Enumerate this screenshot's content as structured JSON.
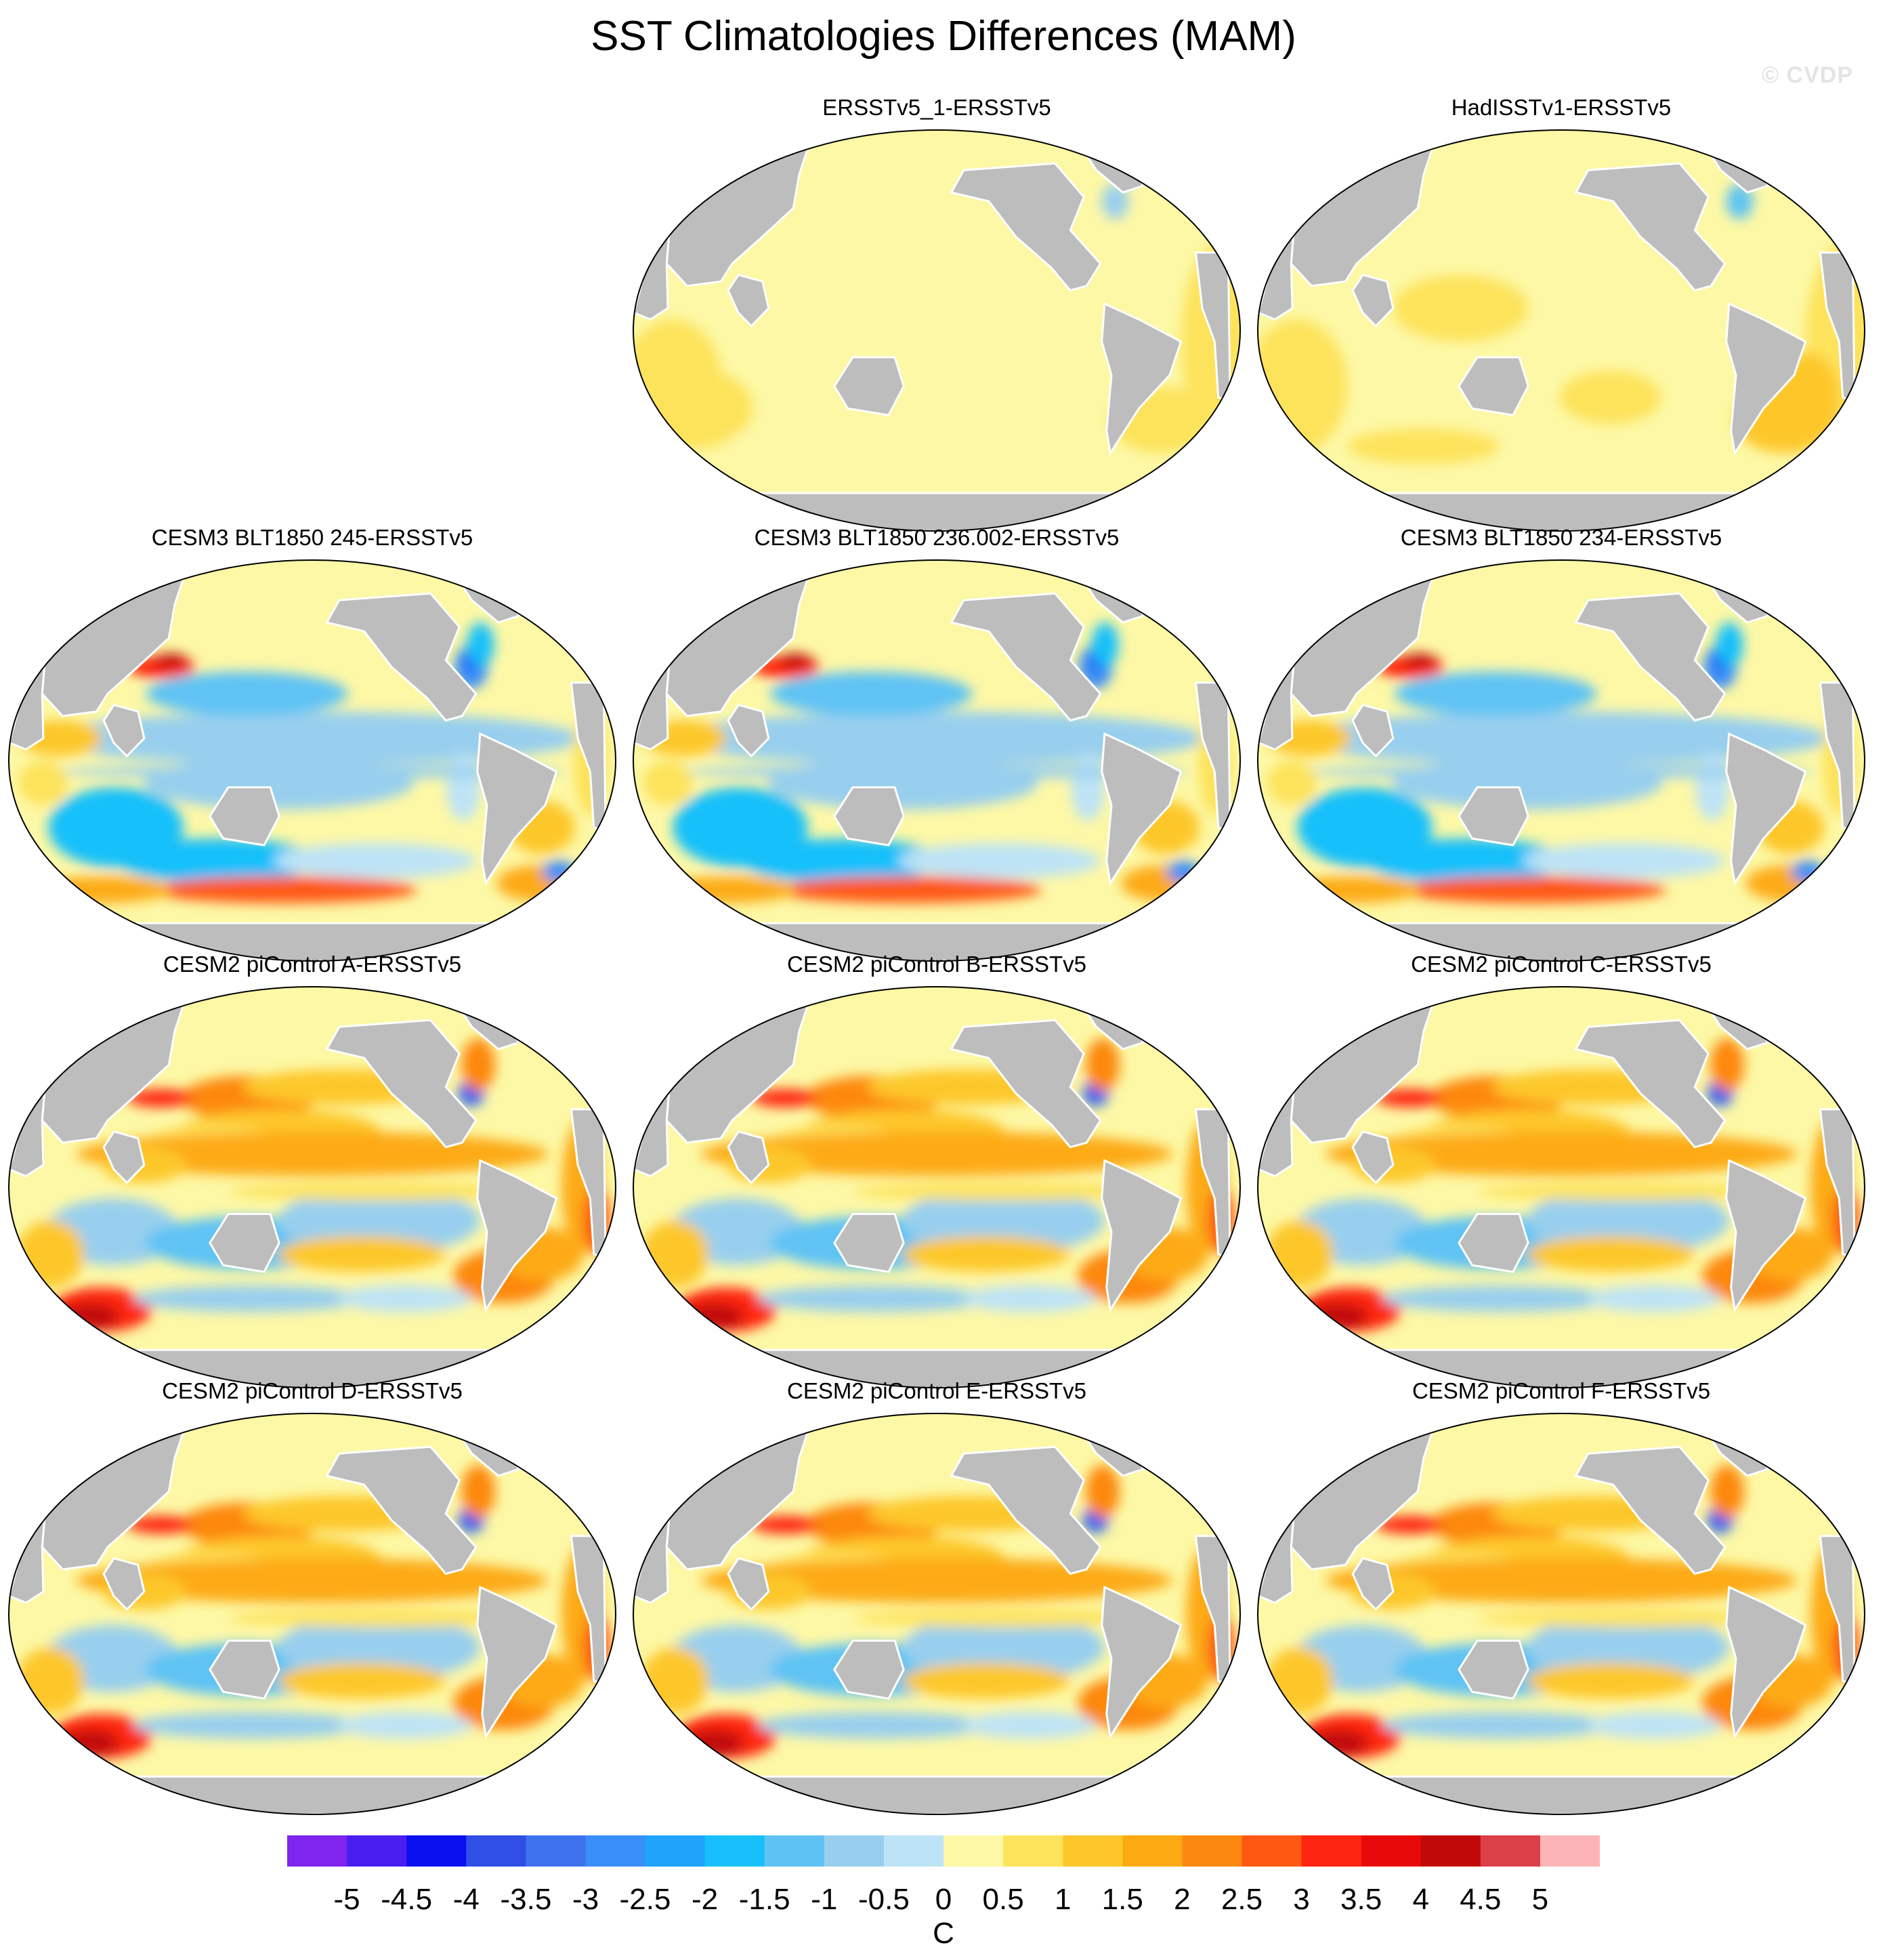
{
  "title": "SST Climatologies Differences (MAM)",
  "watermark": "© CVDP",
  "panels": [
    {
      "title": "ERSSTv5_1-ERSSTv5",
      "style": "obs"
    },
    {
      "title": "HadISSTv1-ERSSTv5",
      "style": "obs2"
    },
    {
      "title": "CESM3 BLT1850 245-ERSSTv5",
      "style": "cesm3"
    },
    {
      "title": "CESM3 BLT1850 236.002-ERSSTv5",
      "style": "cesm3"
    },
    {
      "title": "CESM3 BLT1850 234-ERSSTv5",
      "style": "cesm3"
    },
    {
      "title": "CESM2 piControl A-ERSSTv5",
      "style": "cesm2"
    },
    {
      "title": "CESM2 piControl B-ERSSTv5",
      "style": "cesm2"
    },
    {
      "title": "CESM2 piControl C-ERSSTv5",
      "style": "cesm2"
    },
    {
      "title": "CESM2 piControl D-ERSSTv5",
      "style": "cesm2"
    },
    {
      "title": "CESM2 piControl E-ERSSTv5",
      "style": "cesm2"
    },
    {
      "title": "CESM2 piControl F-ERSSTv5",
      "style": "cesm2"
    }
  ],
  "colorbar": {
    "unit": "C",
    "labels": [
      "-5",
      "-4.5",
      "-4",
      "-3.5",
      "-3",
      "-2.5",
      "-2",
      "-1.5",
      "-1",
      "-0.5",
      "0",
      "0.5",
      "1",
      "1.5",
      "2",
      "2.5",
      "3",
      "3.5",
      "4",
      "4.5",
      "5"
    ],
    "colors": [
      "#7f25ee",
      "#4a1ef0",
      "#0a0ff0",
      "#2f4fe6",
      "#3f72ee",
      "#3a8ef7",
      "#1fa3fb",
      "#17c0fa",
      "#5ec3f4",
      "#98cfee",
      "#bde3f6",
      "#fdf8a6",
      "#fde35c",
      "#fdc72c",
      "#fdaa12",
      "#fd8810",
      "#fe5812",
      "#fe2511",
      "#e80a0a",
      "#c1090a",
      "#db4048",
      "#fdb4b6"
    ]
  },
  "colors": {
    "land": "#bdbdbd",
    "ocean_base": "#fdf8a6"
  }
}
